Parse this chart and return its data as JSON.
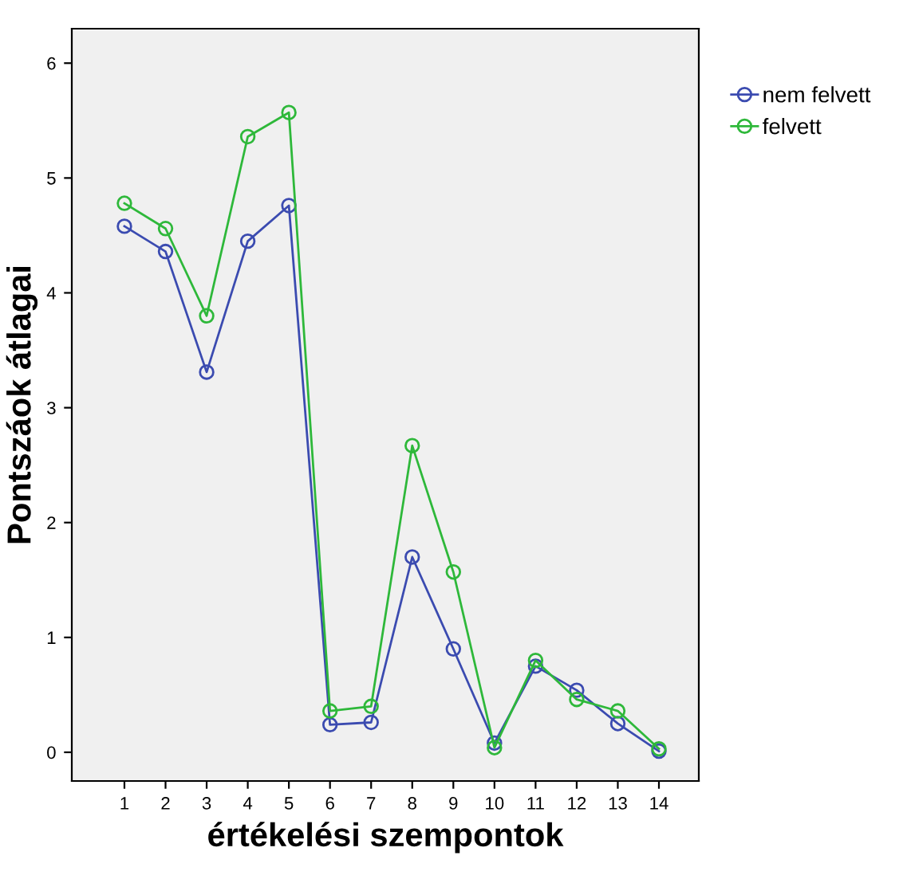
{
  "chart_data": {
    "type": "line",
    "xlabel": "értékelési szempontok",
    "ylabel": "Pontszáok átlagai",
    "categories": [
      "1",
      "2",
      "3",
      "4",
      "5",
      "6",
      "7",
      "8",
      "9",
      "10",
      "11",
      "12",
      "13",
      "14"
    ],
    "series": [
      {
        "name": "nem felvett",
        "color": "#3b4bb0",
        "values": [
          4.58,
          4.36,
          3.31,
          4.45,
          4.76,
          0.24,
          0.26,
          1.7,
          0.9,
          0.08,
          0.75,
          0.54,
          0.25,
          0.01
        ]
      },
      {
        "name": "felvett",
        "color": "#2eb83a",
        "values": [
          4.78,
          4.56,
          3.8,
          5.36,
          5.57,
          0.36,
          0.4,
          2.67,
          1.57,
          0.04,
          0.8,
          0.46,
          0.36,
          0.03
        ]
      }
    ],
    "ylim": [
      -0.25,
      6.3
    ],
    "yticks": [
      0,
      1,
      2,
      3,
      4,
      5,
      6
    ],
    "grid": false,
    "legend": "top right",
    "marker": "circle",
    "line_style": "solid"
  }
}
